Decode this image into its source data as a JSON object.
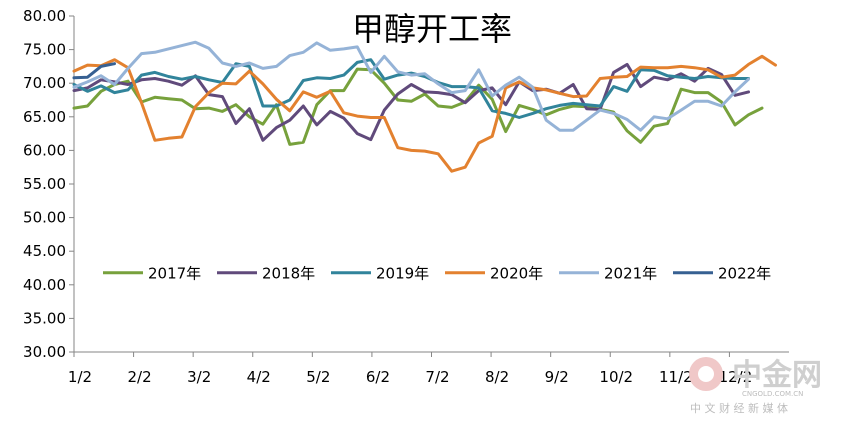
{
  "chart_data": {
    "type": "line",
    "title": "甲醇开工率",
    "xlabel": "",
    "ylabel": "",
    "ylim": [
      30,
      80
    ],
    "yticks": [
      "30.00",
      "35.00",
      "40.00",
      "45.00",
      "50.00",
      "55.00",
      "60.00",
      "65.00",
      "70.00",
      "75.00",
      "80.00"
    ],
    "x_tick_labels": [
      "1/2",
      "2/2",
      "3/2",
      "4/2",
      "5/2",
      "6/2",
      "7/2",
      "8/2",
      "9/2",
      "10/2",
      "11/2",
      "12/2"
    ],
    "grid": false,
    "legend_position": "inside-bottom",
    "series": [
      {
        "name": "2017年",
        "color": "#77a13c",
        "values": [
          66.3,
          66.6,
          68.8,
          69.8,
          70.3,
          67.2,
          67.9,
          67.7,
          67.5,
          66.2,
          66.3,
          65.8,
          66.8,
          65.0,
          63.9,
          66.8,
          60.9,
          61.2,
          66.8,
          68.9,
          68.9,
          72.1,
          72.0,
          70.0,
          67.5,
          67.3,
          68.4,
          66.6,
          66.4,
          67.2,
          69.7,
          67.6,
          62.8,
          66.7,
          66.1,
          65.3,
          66.1,
          66.6,
          66.5,
          66.1,
          65.7,
          62.9,
          61.2,
          63.6,
          64.0,
          69.1,
          68.6,
          68.6,
          67.2,
          63.8,
          65.3,
          66.3
        ]
      },
      {
        "name": "2018年",
        "color": "#604a7b",
        "values": [
          68.9,
          69.3,
          70.5,
          70.2,
          69.8,
          70.5,
          70.7,
          70.3,
          69.7,
          71.1,
          68.3,
          68.0,
          64.0,
          66.2,
          61.5,
          63.4,
          64.5,
          66.6,
          63.8,
          65.8,
          64.8,
          62.5,
          61.6,
          66.0,
          68.4,
          69.8,
          68.7,
          68.6,
          68.3,
          67.1,
          68.9,
          69.3,
          66.8,
          70.2,
          68.9,
          69.1,
          68.5,
          69.8,
          66.2,
          66.1,
          71.6,
          72.8,
          69.5,
          70.9,
          70.5,
          71.4,
          70.3,
          72.2,
          71.3,
          68.2,
          68.7
        ]
      },
      {
        "name": "2019年",
        "color": "#31849b",
        "values": [
          69.8,
          68.8,
          69.6,
          68.6,
          69.0,
          71.2,
          71.6,
          71.0,
          70.6,
          71.0,
          70.5,
          70.1,
          72.9,
          72.5,
          66.6,
          66.6,
          67.5,
          70.4,
          70.8,
          70.7,
          71.2,
          73.1,
          73.5,
          70.6,
          71.2,
          71.5,
          71.0,
          70.1,
          69.5,
          69.5,
          69.3,
          65.9,
          65.5,
          64.9,
          65.5,
          66.2,
          66.7,
          67.0,
          66.8,
          66.6,
          69.5,
          68.8,
          72.0,
          71.9,
          71.1,
          70.9,
          70.7,
          71.0,
          70.8,
          70.7,
          70.7
        ]
      },
      {
        "name": "2020年",
        "color": "#e3812f",
        "values": [
          71.8,
          72.7,
          72.6,
          73.5,
          72.3,
          67.1,
          61.5,
          61.8,
          62.0,
          66.5,
          68.6,
          70.0,
          69.9,
          71.8,
          69.9,
          67.6,
          65.9,
          68.7,
          67.9,
          68.8,
          65.6,
          65.1,
          64.9,
          64.9,
          60.4,
          60.0,
          59.9,
          59.5,
          56.9,
          57.5,
          61.1,
          62.1,
          69.3,
          70.2,
          69.3,
          69.0,
          68.5,
          68.0,
          68.1,
          70.7,
          70.9,
          71.0,
          72.4,
          72.3,
          72.3,
          72.5,
          72.3,
          72.0,
          70.9,
          71.2,
          72.8,
          74.0,
          72.7
        ]
      },
      {
        "name": "2021年",
        "color": "#95b3d7",
        "values": [
          69.4,
          70.2,
          71.1,
          69.8,
          72.2,
          74.4,
          74.6,
          75.1,
          75.6,
          76.1,
          75.2,
          73.0,
          72.5,
          73.0,
          72.2,
          72.5,
          74.1,
          74.6,
          76.0,
          74.9,
          75.1,
          75.4,
          71.6,
          74.0,
          71.7,
          71.2,
          71.4,
          69.9,
          68.6,
          68.9,
          72.0,
          68.1,
          69.7,
          70.9,
          69.4,
          64.5,
          63.0,
          63.0,
          64.5,
          66.0,
          65.5,
          64.6,
          63.0,
          65.0,
          64.7,
          66.0,
          67.3,
          67.3,
          66.6,
          68.7,
          70.6
        ]
      },
      {
        "name": "2022年",
        "color": "#376092",
        "values": [
          70.8,
          70.9,
          72.5,
          72.9
        ]
      }
    ]
  }
}
